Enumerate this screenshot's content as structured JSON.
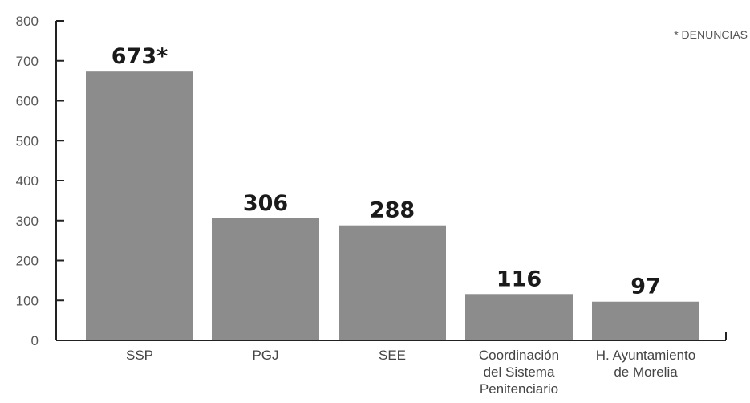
{
  "chart_data": {
    "type": "bar",
    "categories": [
      [
        "SSP"
      ],
      [
        "PGJ"
      ],
      [
        "SEE"
      ],
      [
        "Coordinación",
        "del Sistema",
        "Penitenciario"
      ],
      [
        "H. Ayuntamiento",
        "de Morelia"
      ]
    ],
    "values": [
      673,
      306,
      288,
      116,
      97
    ],
    "value_labels": [
      "673*",
      "306",
      "288",
      "116",
      "97"
    ],
    "yticks": [
      "0",
      "100",
      "200",
      "300",
      "400",
      "500",
      "600",
      "700",
      "800"
    ],
    "ylim": [
      0,
      800
    ],
    "annotation": "* DENUNCIAS",
    "colors": {
      "bar": "#8c8c8c",
      "axis": "#222222"
    }
  }
}
